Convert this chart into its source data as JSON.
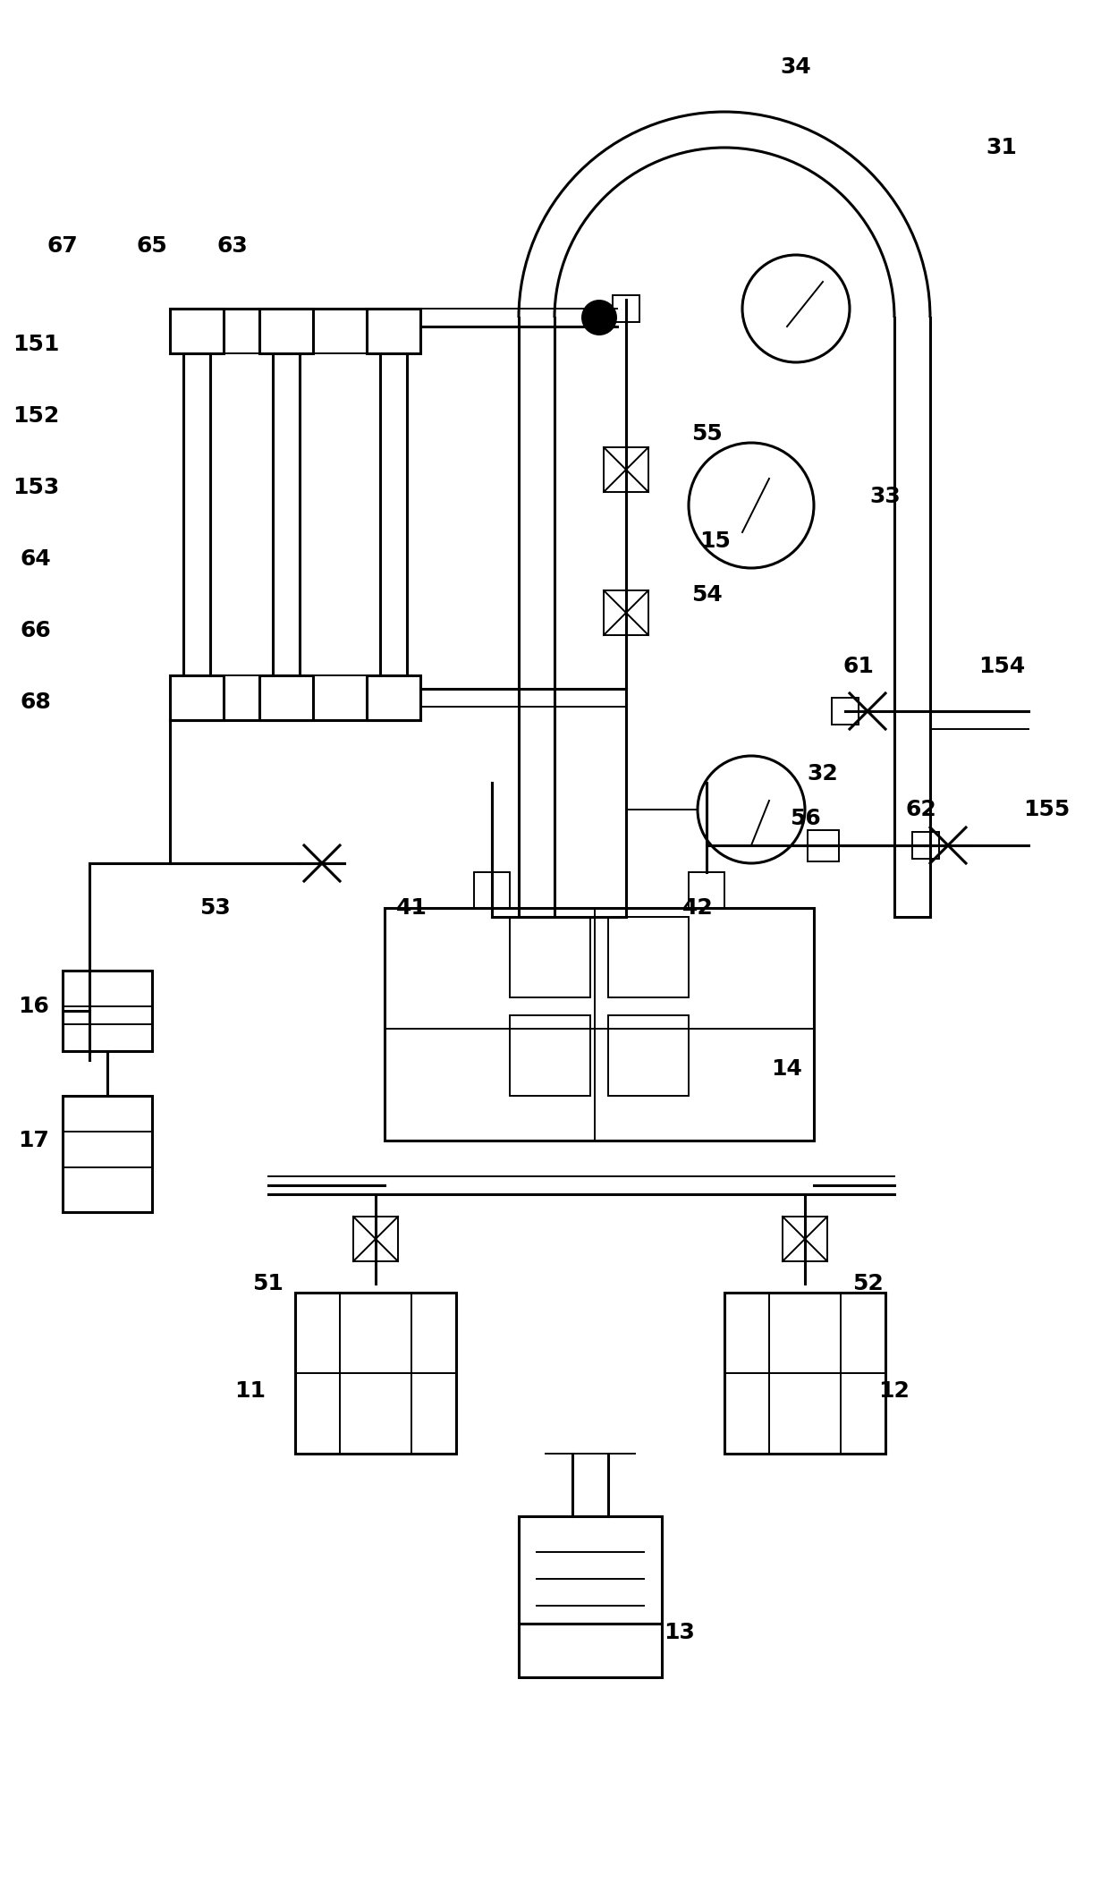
{
  "bg_color": "#ffffff",
  "lc": "#000000",
  "lw": 2.2,
  "tlw": 1.4,
  "fs": 18,
  "fw": "bold",
  "figsize": [
    12.4,
    21.05
  ],
  "dpi": 100
}
